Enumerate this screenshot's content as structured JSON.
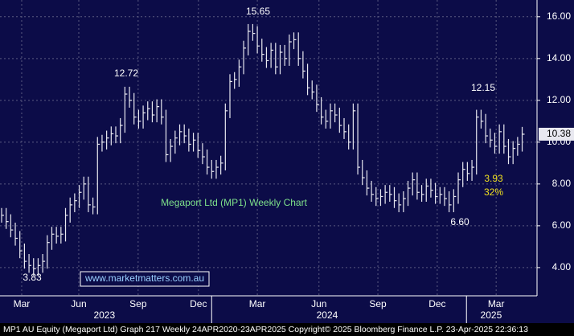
{
  "chart_data": {
    "type": "hlc",
    "series": [
      {
        "name": "MP1 AU Equity",
        "color": "#e8e8f0",
        "close": [
          6.5,
          6.2,
          5.8,
          5.4,
          4.8,
          4.3,
          4.1,
          3.95,
          4.1,
          4.3,
          5.2,
          5.6,
          5.5,
          5.6,
          6.5,
          7.0,
          7.2,
          7.6,
          8.0,
          7.0,
          6.9,
          9.9,
          10.0,
          10.2,
          10.4,
          10.3,
          10.8,
          12.3,
          12.0,
          11.2,
          11.0,
          11.4,
          11.6,
          11.3,
          11.7,
          11.2,
          9.4,
          9.8,
          10.2,
          10.5,
          10.3,
          9.9,
          10.1,
          9.6,
          9.3,
          8.8,
          8.6,
          8.8,
          9.0,
          11.5,
          12.9,
          13.0,
          13.6,
          14.5,
          15.3,
          15.2,
          14.6,
          14.2,
          13.9,
          14.4,
          13.6,
          14.3,
          14.0,
          14.8,
          14.9,
          14.0,
          13.4,
          12.6,
          12.4,
          11.8,
          11.2,
          11.0,
          11.5,
          11.3,
          10.8,
          10.5,
          10.0,
          11.5,
          8.8,
          8.3,
          7.8,
          7.5,
          7.3,
          7.4,
          7.6,
          7.5,
          7.2,
          7.0,
          7.3,
          7.8,
          8.2,
          7.6,
          7.5,
          7.9,
          7.7,
          7.4,
          7.5,
          7.3,
          7.0,
          7.4,
          8.2,
          8.7,
          8.5,
          8.8,
          11.2,
          11.0,
          10.3,
          10.1,
          9.8,
          10.5,
          9.8,
          9.3,
          9.7,
          9.9,
          10.38
        ]
      }
    ],
    "ylim": [
      2.65,
      16.8
    ],
    "yticks": [
      {
        "value": 4,
        "label": "4.00"
      },
      {
        "value": 6,
        "label": "6.00"
      },
      {
        "value": 8,
        "label": "8.00"
      },
      {
        "value": 10,
        "label": "10.00"
      },
      {
        "value": 12,
        "label": "12.00"
      },
      {
        "value": 14,
        "label": "14.00"
      },
      {
        "value": 16,
        "label": "16.00"
      }
    ],
    "xlim": [
      -0.35,
      117.25
    ],
    "xticks": [
      {
        "value": 4.4,
        "label": "Mar"
      },
      {
        "value": 16.9,
        "label": "Jun"
      },
      {
        "value": 29.9,
        "label": "Sep"
      },
      {
        "value": 43.1,
        "label": "Dec"
      },
      {
        "value": 56,
        "label": "Mar"
      },
      {
        "value": 69.5,
        "label": "Jun"
      },
      {
        "value": 82.4,
        "label": "Sep"
      },
      {
        "value": 95.4,
        "label": "Dec"
      },
      {
        "value": 108.3,
        "label": "Mar"
      }
    ],
    "year_ticks": [
      {
        "value": 22.5,
        "label": "2023"
      },
      {
        "value": 71.3,
        "label": "2024"
      },
      {
        "value": 107.2,
        "label": "2025"
      }
    ],
    "year_breaks": [
      46,
      101.8
    ],
    "grid": true,
    "annotations": [
      "15.65",
      "12.72",
      "3.83",
      "12.15",
      "6.60",
      "3.93",
      "32%"
    ],
    "title": "Megaport Ltd (MP1) Weekly Chart",
    "watermark": "www.marketmatters.com.au",
    "footer": "MP1 AU Equity (Megaport Ltd) Graph 217  Weekly 24APR2020-23APR2025 Copyright© 2025 Bloomberg Finance L.P.  23-Apr-2025 22:36:13"
  }
}
